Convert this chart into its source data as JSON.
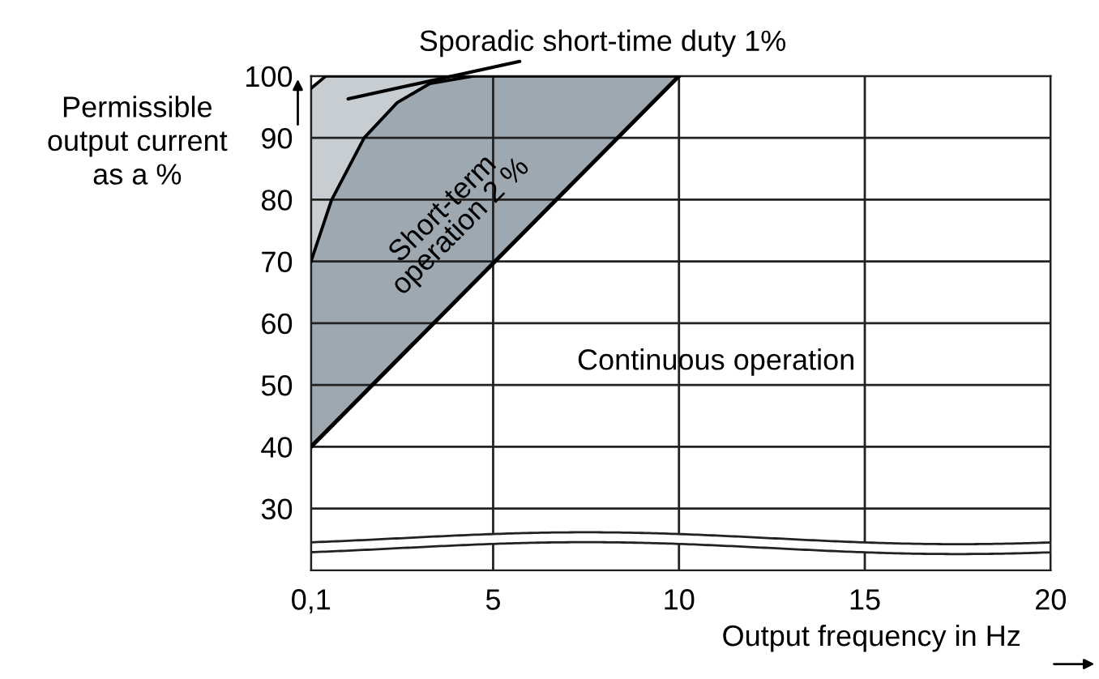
{
  "chart_data": {
    "type": "area",
    "xlabel": "Output frequency in Hz",
    "ylabel": "Permissible\noutput current\nas a %",
    "series": [
      {
        "color": "#c8cdd2",
        "x": [
          0.1,
          0.5,
          4.47
        ],
        "values": [
          98,
          100,
          100
        ]
      },
      {
        "color": "#9ea8b0",
        "x": [
          0.1,
          0.65,
          1.53,
          2.42,
          3.3,
          4.47,
          10
        ],
        "values": [
          70,
          79.9,
          90,
          95.7,
          98.8,
          100,
          100
        ]
      },
      {
        "type": "line",
        "color": "#000000",
        "x": [
          0.1,
          10
        ],
        "values": [
          40,
          100
        ]
      }
    ],
    "annotations": [
      "Sporadic short-time duty 1%",
      "Short-term\noperation 2 %",
      "Continuous operation"
    ],
    "xlim": [
      0.1,
      20
    ],
    "xticks": [
      {
        "value": 0.1,
        "label": "0,1"
      },
      5,
      10,
      15,
      20
    ],
    "ylim": [
      20,
      100
    ],
    "yticks": [
      30,
      40,
      50,
      60,
      70,
      80,
      90,
      100
    ],
    "grid": true
  }
}
